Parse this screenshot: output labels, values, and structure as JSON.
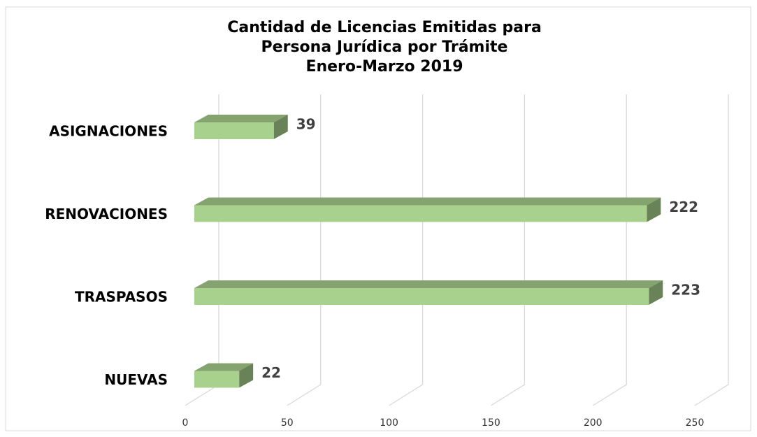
{
  "chart_data": {
    "type": "bar3d_horizontal",
    "title": [
      "Cantidad de Licencias Emitidas para",
      "Persona Jurídica por Trámite",
      "Enero-Marzo 2019"
    ],
    "categories": [
      "ASIGNACIONES",
      "RENOVACIONES",
      "TRASPASOS",
      "NUEVAS"
    ],
    "values": [
      39,
      222,
      223,
      22
    ],
    "color": "#a9d18e",
    "xlim": [
      0,
      250
    ],
    "xticks": [
      0,
      50,
      100,
      150,
      200,
      250
    ],
    "grid": true
  }
}
